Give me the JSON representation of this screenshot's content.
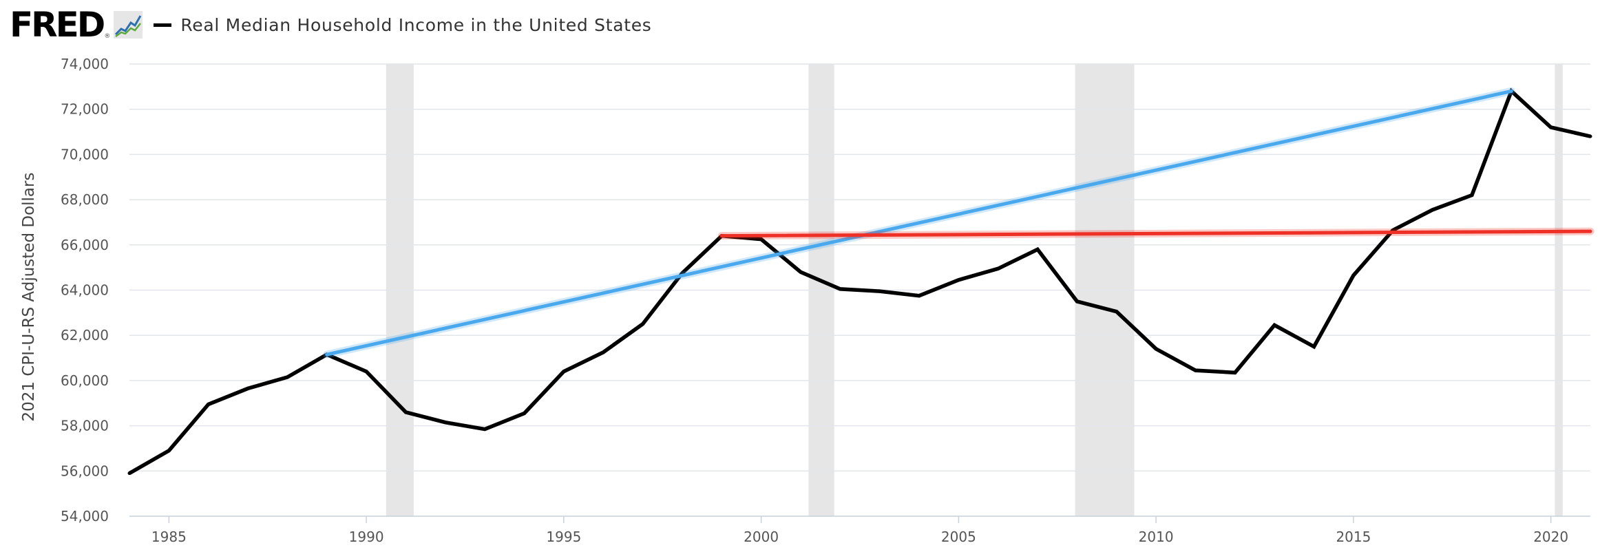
{
  "header": {
    "logo_text": "FRED",
    "logo_reg": "®",
    "legend_label": "Real Median Household Income in the United States",
    "legend_color": "#000000"
  },
  "chart_data": {
    "type": "line",
    "title": "Real Median Household Income in the United States",
    "ylabel": "2021 CPI-U-RS Adjusted Dollars",
    "xlabel": "",
    "xlim": [
      1984,
      2021
    ],
    "ylim": [
      54000,
      74000
    ],
    "x_ticks": [
      1985,
      1990,
      1995,
      2000,
      2005,
      2010,
      2015,
      2020
    ],
    "y_ticks": [
      54000,
      56000,
      58000,
      60000,
      62000,
      64000,
      66000,
      68000,
      70000,
      72000,
      74000
    ],
    "y_tick_labels": [
      "54,000",
      "56,000",
      "58,000",
      "60,000",
      "62,000",
      "64,000",
      "66,000",
      "68,000",
      "70,000",
      "72,000",
      "74,000"
    ],
    "x_tick_labels": [
      "1985",
      "1990",
      "1995",
      "2000",
      "2005",
      "2010",
      "2015",
      "2020"
    ],
    "grid": true,
    "recessions": [
      [
        1990.5,
        1991.2
      ],
      [
        2001.2,
        2001.85
      ],
      [
        2007.95,
        2009.45
      ],
      [
        2020.1,
        2020.3
      ]
    ],
    "series": [
      {
        "name": "Real Median Household Income in the United States",
        "color": "#000000",
        "x": [
          1984,
          1985,
          1986,
          1987,
          1988,
          1989,
          1990,
          1991,
          1992,
          1993,
          1994,
          1995,
          1996,
          1997,
          1998,
          1999,
          2000,
          2001,
          2002,
          2003,
          2004,
          2005,
          2006,
          2007,
          2008,
          2009,
          2010,
          2011,
          2012,
          2013,
          2014,
          2015,
          2016,
          2017,
          2018,
          2019,
          2020,
          2021
        ],
        "values": [
          55900,
          56900,
          58950,
          59650,
          60150,
          61150,
          60400,
          58600,
          58150,
          57850,
          58550,
          60400,
          61250,
          62500,
          64750,
          66400,
          66250,
          64800,
          64050,
          63950,
          63750,
          64450,
          64950,
          65800,
          63500,
          63050,
          61400,
          60450,
          60350,
          62450,
          61500,
          64650,
          66650,
          67550,
          68200,
          72800,
          71200,
          70800
        ]
      }
    ],
    "annotations": [
      {
        "type": "trendline",
        "color": "#4aa8ec",
        "from": [
          1989,
          61150
        ],
        "to": [
          2019,
          72800
        ]
      },
      {
        "type": "trendline",
        "color": "#ee3026",
        "from": [
          1999,
          66400
        ],
        "to": [
          2021,
          66600
        ]
      }
    ]
  }
}
